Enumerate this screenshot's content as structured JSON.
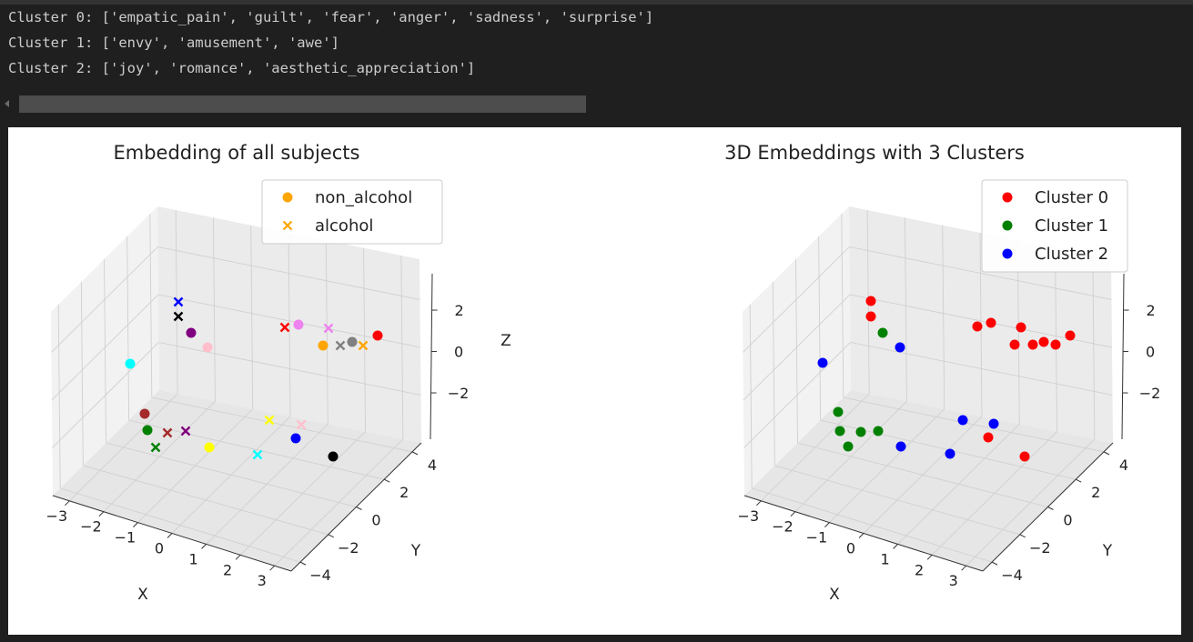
{
  "output": {
    "lines": [
      "Cluster 0: ['empatic_pain', 'guilt', 'fear', 'anger', 'sadness', 'surprise']",
      "Cluster 1: ['envy', 'amusement', 'awe']",
      "Cluster 2: ['joy', 'romance', 'aesthetic_appreciation']"
    ]
  },
  "chart_data": [
    {
      "type": "scatter",
      "title": "Embedding of all subjects",
      "xlabel": "X",
      "ylabel": "Y",
      "zlabel": "Z",
      "xticks": [
        "−3",
        "−2",
        "−1",
        "0",
        "1",
        "2",
        "3"
      ],
      "yticks": [
        "4",
        "2",
        "0",
        "−2",
        "−4"
      ],
      "zticks": [
        "2",
        "0",
        "−2"
      ],
      "legend": {
        "placement": "top-right",
        "entries": [
          {
            "name": "non_alcohol",
            "marker": "o",
            "color": "#ffa500"
          },
          {
            "name": "alcohol",
            "marker": "x",
            "color": "#ffa500"
          }
        ]
      },
      "points": [
        {
          "marker": "x",
          "color": "#0000ff"
        },
        {
          "marker": "x",
          "color": "#000000"
        },
        {
          "marker": "o",
          "color": "#800080"
        },
        {
          "marker": "o",
          "color": "#ffc0cb"
        },
        {
          "marker": "o",
          "color": "#00ffff"
        },
        {
          "marker": "o",
          "color": "#a52a2a"
        },
        {
          "marker": "o",
          "color": "#008000"
        },
        {
          "marker": "x",
          "color": "#a52a2a"
        },
        {
          "marker": "x",
          "color": "#800080"
        },
        {
          "marker": "x",
          "color": "#008000"
        },
        {
          "marker": "o",
          "color": "#ffff00"
        },
        {
          "marker": "x",
          "color": "#00ffff"
        },
        {
          "marker": "x",
          "color": "#ffff00"
        },
        {
          "marker": "x",
          "color": "#ffc0cb"
        },
        {
          "marker": "o",
          "color": "#0000ff"
        },
        {
          "marker": "o",
          "color": "#000000"
        },
        {
          "marker": "x",
          "color": "#ff0000"
        },
        {
          "marker": "o",
          "color": "#ee82ee"
        },
        {
          "marker": "x",
          "color": "#ee82ee"
        },
        {
          "marker": "o",
          "color": "#ffa500"
        },
        {
          "marker": "x",
          "color": "#808080"
        },
        {
          "marker": "o",
          "color": "#808080"
        },
        {
          "marker": "x",
          "color": "#ffa500"
        },
        {
          "marker": "o",
          "color": "#ff0000"
        }
      ]
    },
    {
      "type": "scatter",
      "title": "3D Embeddings with 3 Clusters",
      "xlabel": "X",
      "ylabel": "Y",
      "zlabel": "",
      "xticks": [
        "−3",
        "−2",
        "−1",
        "0",
        "1",
        "2",
        "3"
      ],
      "yticks": [
        "4",
        "2",
        "0",
        "−2",
        "−4"
      ],
      "zticks": [
        "2",
        "0",
        "−2"
      ],
      "legend": {
        "placement": "top-right",
        "entries": [
          {
            "name": "Cluster 0",
            "marker": "o",
            "color": "#ff0000"
          },
          {
            "name": "Cluster 1",
            "marker": "o",
            "color": "#008000"
          },
          {
            "name": "Cluster 2",
            "marker": "o",
            "color": "#0000ff"
          }
        ]
      },
      "points": [
        {
          "marker": "o",
          "color": "#ff0000"
        },
        {
          "marker": "o",
          "color": "#ff0000"
        },
        {
          "marker": "o",
          "color": "#008000"
        },
        {
          "marker": "o",
          "color": "#0000ff"
        },
        {
          "marker": "o",
          "color": "#0000ff"
        },
        {
          "marker": "o",
          "color": "#008000"
        },
        {
          "marker": "o",
          "color": "#008000"
        },
        {
          "marker": "o",
          "color": "#008000"
        },
        {
          "marker": "o",
          "color": "#008000"
        },
        {
          "marker": "o",
          "color": "#008000"
        },
        {
          "marker": "o",
          "color": "#0000ff"
        },
        {
          "marker": "o",
          "color": "#0000ff"
        },
        {
          "marker": "o",
          "color": "#0000ff"
        },
        {
          "marker": "o",
          "color": "#0000ff"
        },
        {
          "marker": "o",
          "color": "#ff0000"
        },
        {
          "marker": "o",
          "color": "#ff0000"
        },
        {
          "marker": "o",
          "color": "#ff0000"
        },
        {
          "marker": "o",
          "color": "#ff0000"
        },
        {
          "marker": "o",
          "color": "#ff0000"
        },
        {
          "marker": "o",
          "color": "#ff0000"
        },
        {
          "marker": "o",
          "color": "#ff0000"
        },
        {
          "marker": "o",
          "color": "#ff0000"
        },
        {
          "marker": "o",
          "color": "#ff0000"
        },
        {
          "marker": "o",
          "color": "#ff0000"
        }
      ]
    }
  ]
}
